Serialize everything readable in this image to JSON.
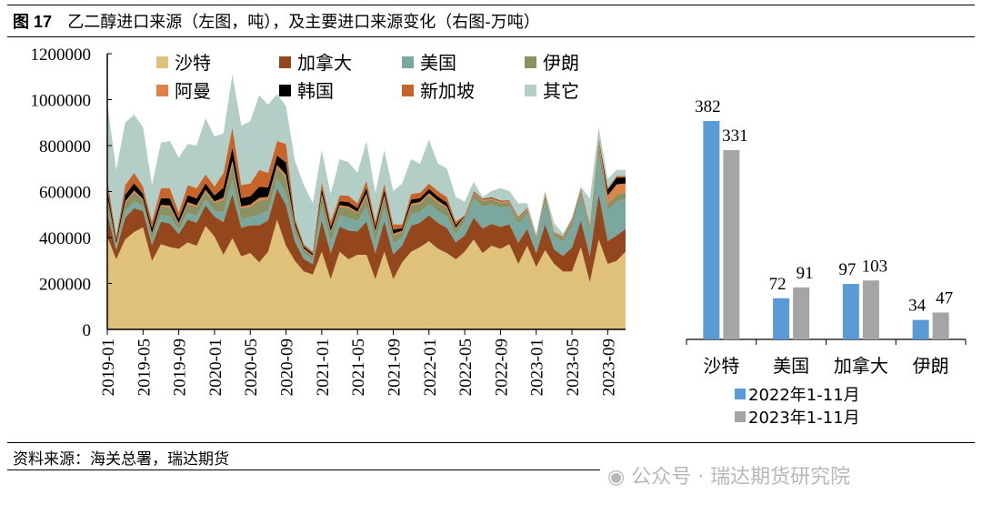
{
  "title": {
    "fig_no": "图 17",
    "text": "乙二醇进口来源（左图，吨），及主要进口来源变化（右图-万吨）"
  },
  "footer": {
    "source": "资料来源：海关总署，瑞达期货",
    "watermark": "公众号 · 瑞达期货研究院"
  },
  "chart_data": [
    {
      "type": "area",
      "stacked": true,
      "title": "乙二醇进口来源（吨）",
      "ylim": [
        0,
        1200000
      ],
      "yticks": [
        "0",
        "200000",
        "400000",
        "600000",
        "800000",
        "1000000",
        "1200000"
      ],
      "x_tick_labels": [
        "2019-01",
        "2019-05",
        "2019-09",
        "2020-01",
        "2020-05",
        "2020-09",
        "2021-01",
        "2021-05",
        "2021-09",
        "2022-01",
        "2022-05",
        "2022-09",
        "2023-01",
        "2023-05",
        "2023-09"
      ],
      "x_start": "2019-01",
      "n_months": 59,
      "legend_position": "top",
      "series": [
        {
          "name": "沙特",
          "color": "#DFC17A",
          "values": [
            404,
            305,
            391,
            424,
            444,
            298,
            371,
            358,
            351,
            378,
            364,
            450,
            404,
            325,
            397,
            318,
            332,
            292,
            338,
            477,
            364,
            298,
            252,
            239,
            338,
            219,
            338,
            305,
            325,
            325,
            219,
            338,
            219,
            292,
            338,
            358,
            384,
            351,
            332,
            305,
            338,
            391,
            332,
            364,
            351,
            371,
            285,
            364,
            272,
            345,
            285,
            252,
            252,
            358,
            206,
            391,
            285,
            298,
            338
          ]
        },
        {
          "name": "加拿大",
          "color": "#94461C",
          "values": [
            100,
            40,
            95,
            103,
            71,
            69,
            98,
            103,
            64,
            100,
            100,
            90,
            87,
            142,
            193,
            124,
            121,
            161,
            137,
            137,
            177,
            83,
            54,
            45,
            137,
            113,
            110,
            125,
            101,
            145,
            113,
            134,
            107,
            74,
            113,
            107,
            113,
            113,
            110,
            74,
            71,
            95,
            107,
            95,
            95,
            86,
            92,
            74,
            59,
            113,
            63,
            68,
            104,
            116,
            113,
            199,
            99,
            111,
            99
          ]
        },
        {
          "name": "美国",
          "color": "#7BA89E",
          "values": [
            30,
            12,
            28,
            31,
            21,
            21,
            29,
            31,
            19,
            30,
            30,
            27,
            26,
            43,
            58,
            37,
            36,
            48,
            41,
            41,
            53,
            37,
            24,
            20,
            61,
            50,
            49,
            55,
            45,
            65,
            50,
            59,
            48,
            33,
            50,
            47,
            50,
            50,
            49,
            33,
            63,
            84,
            95,
            85,
            84,
            76,
            82,
            66,
            53,
            100,
            56,
            61,
            92,
            103,
            100,
            177,
            132,
            148,
            132
          ]
        },
        {
          "name": "伊朗",
          "color": "#8A9060",
          "values": [
            38,
            15,
            36,
            39,
            27,
            26,
            37,
            39,
            24,
            38,
            38,
            34,
            33,
            53,
            72,
            47,
            45,
            60,
            51,
            51,
            66,
            28,
            18,
            15,
            46,
            38,
            37,
            42,
            34,
            48,
            38,
            45,
            36,
            25,
            38,
            36,
            38,
            38,
            37,
            25,
            16,
            21,
            24,
            21,
            21,
            19,
            21,
            17,
            13,
            25,
            14,
            15,
            23,
            26,
            25,
            44,
            26,
            30,
            26
          ]
        },
        {
          "name": "阿曼",
          "color": "#E0834A",
          "values": [
            8,
            3,
            7,
            8,
            5,
            5,
            7,
            8,
            5,
            8,
            8,
            7,
            7,
            11,
            14,
            9,
            9,
            12,
            10,
            10,
            13,
            6,
            4,
            3,
            9,
            8,
            7,
            8,
            7,
            10,
            8,
            9,
            7,
            5,
            8,
            7,
            8,
            8,
            7,
            5,
            5,
            6,
            7,
            6,
            6,
            6,
            6,
            5,
            4,
            8,
            4,
            5,
            7,
            8,
            8,
            13,
            40,
            44,
            40
          ]
        },
        {
          "name": "韩国",
          "color": "#000000",
          "values": [
            30,
            12,
            28,
            31,
            21,
            21,
            29,
            31,
            19,
            30,
            30,
            27,
            26,
            43,
            58,
            37,
            36,
            48,
            41,
            41,
            53,
            13,
            8,
            7,
            21,
            18,
            17,
            19,
            16,
            23,
            18,
            21,
            17,
            12,
            18,
            17,
            18,
            18,
            17,
            12,
            2,
            2,
            2,
            2,
            2,
            2,
            2,
            2,
            1,
            2,
            1,
            2,
            2,
            2,
            2,
            4,
            26,
            30,
            26
          ]
        },
        {
          "name": "新加坡",
          "color": "#C8642A",
          "values": [
            45,
            17,
            43,
            45,
            33,
            30,
            44,
            45,
            28,
            44,
            45,
            40,
            39,
            64,
            87,
            56,
            56,
            73,
            63,
            63,
            81,
            18,
            11,
            9,
            30,
            24,
            24,
            28,
            21,
            32,
            24,
            29,
            23,
            16,
            24,
            23,
            24,
            24,
            24,
            16,
            1,
            3,
            2,
            3,
            3,
            2,
            2,
            1,
            2,
            2,
            1,
            1,
            3,
            2,
            3,
            5,
            7,
            7,
            7
          ]
        },
        {
          "name": "其它",
          "color": "#B3CEC6",
          "values": [
            330,
            290,
            271,
            254,
            257,
            158,
            198,
            205,
            237,
            179,
            185,
            244,
            218,
            172,
            231,
            258,
            271,
            324,
            297,
            204,
            165,
            251,
            257,
            211,
            138,
            119,
            159,
            145,
            132,
            172,
            125,
            145,
            145,
            178,
            152,
            126,
            191,
            119,
            125,
            106,
            60,
            40,
            7,
            26,
            53,
            40,
            59,
            20,
            13,
            7,
            39,
            13,
            0,
            7,
            112,
            46,
            40,
            26,
            26
          ]
        }
      ],
      "value_unit_multiplier": 1000
    },
    {
      "type": "bar",
      "title": "主要进口来源变化（万吨）",
      "categories": [
        "沙特",
        "美国",
        "加拿大",
        "伊朗"
      ],
      "series": [
        {
          "name": "2022年1-11月",
          "color": "#5B9BD5",
          "values": [
            382,
            72,
            97,
            34
          ]
        },
        {
          "name": "2023年1-11月",
          "color": "#A5A5A5",
          "values": [
            331,
            91,
            103,
            47
          ]
        }
      ],
      "ylim": [
        0,
        420
      ],
      "legend_position": "bottom"
    }
  ]
}
